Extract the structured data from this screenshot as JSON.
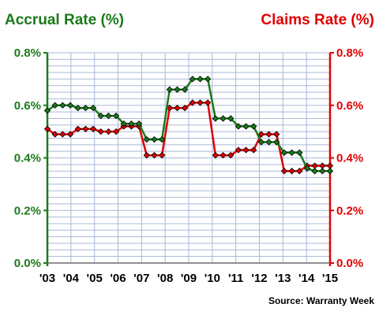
{
  "chart_data": {
    "type": "line",
    "left_axis_label": "Accrual Rate (%)",
    "right_axis_label": "Claims Rate (%)",
    "source": "Source: Warranty Week",
    "x_tick_labels": [
      "'03",
      "'04",
      "'05",
      "'06",
      "'07",
      "'08",
      "'09",
      "'10",
      "'11",
      "'12",
      "'13",
      "'14",
      "'15"
    ],
    "y_tick_labels": [
      "0.0%",
      "0.2%",
      "0.4%",
      "0.6%",
      "0.8%"
    ],
    "ylim": [
      0,
      0.8
    ],
    "grid": true,
    "colors": {
      "accrual": "#1a7a1a",
      "claims": "#e00000",
      "grid": "#a9b8d8",
      "marker_edge": "#000000"
    },
    "series": [
      {
        "name": "Accrual Rate (%)",
        "axis": "left",
        "values": [
          0.58,
          0.6,
          0.6,
          0.6,
          0.59,
          0.59,
          0.59,
          0.56,
          0.56,
          0.56,
          0.53,
          0.53,
          0.53,
          0.47,
          0.47,
          0.47,
          0.66,
          0.66,
          0.66,
          0.7,
          0.7,
          0.7,
          0.55,
          0.55,
          0.55,
          0.52,
          0.52,
          0.52,
          0.46,
          0.46,
          0.46,
          0.42,
          0.42,
          0.42,
          0.36,
          0.35,
          0.35,
          0.35
        ]
      },
      {
        "name": "Claims Rate (%)",
        "axis": "right",
        "values": [
          0.51,
          0.49,
          0.49,
          0.49,
          0.51,
          0.51,
          0.51,
          0.5,
          0.5,
          0.5,
          0.52,
          0.52,
          0.52,
          0.41,
          0.41,
          0.41,
          0.59,
          0.59,
          0.59,
          0.61,
          0.61,
          0.61,
          0.41,
          0.41,
          0.41,
          0.43,
          0.43,
          0.43,
          0.49,
          0.49,
          0.49,
          0.35,
          0.35,
          0.35,
          0.37,
          0.37,
          0.37,
          0.37
        ]
      }
    ]
  }
}
